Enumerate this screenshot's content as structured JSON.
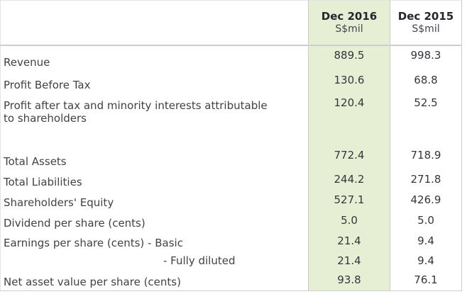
{
  "report": {
    "columns": [
      {
        "title": "Dec 2016",
        "unit": "S$mil"
      },
      {
        "title": "Dec 2015",
        "unit": "S$mil"
      }
    ],
    "rows": [
      {
        "label": "Revenue",
        "values": [
          "889.5",
          "998.3"
        ]
      },
      {
        "label": "Profit Before Tax",
        "values": [
          "130.6",
          "68.8"
        ]
      },
      {
        "label": "Profit after tax and minority interests attributable\nto shareholders",
        "values": [
          "120.4",
          "52.5"
        ]
      },
      {
        "spacer": true,
        "label": "",
        "values": [
          "",
          ""
        ]
      },
      {
        "label": "Total Assets",
        "values": [
          "772.4",
          "718.9"
        ]
      },
      {
        "label": "Total Liabilities",
        "values": [
          "244.2",
          "271.8"
        ]
      },
      {
        "label": "Shareholders' Equity",
        "values": [
          "527.1",
          "426.9"
        ]
      },
      {
        "label": "Dividend per share (cents)",
        "values": [
          "5.0",
          "5.0"
        ]
      },
      {
        "label": "Earnings per share (cents) - Basic",
        "values": [
          "21.4",
          "9.4"
        ]
      },
      {
        "label": "- Fully diluted",
        "indent": true,
        "values": [
          "21.4",
          "9.4"
        ]
      },
      {
        "label": "Net asset value per share (cents)",
        "values": [
          "93.8",
          "76.1"
        ]
      }
    ],
    "colors": {
      "highlight_column_bg": "#e6efd4",
      "grid_line": "#cbcbcb",
      "header_text": "#26262e",
      "value_text": "#35353d",
      "label_text": "#424242"
    }
  }
}
